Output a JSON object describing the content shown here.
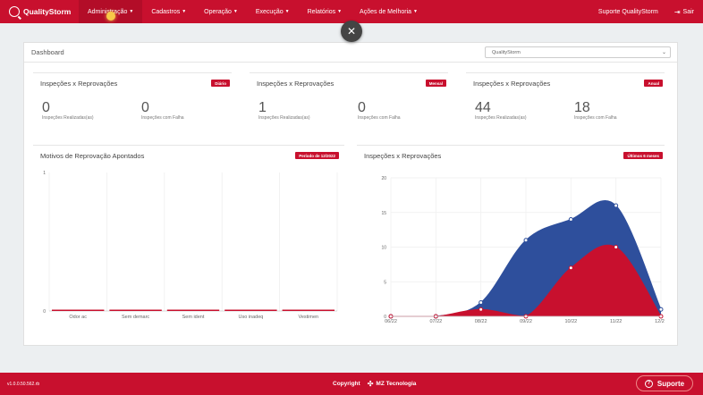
{
  "brand": {
    "name": "QualityStorm"
  },
  "nav": {
    "items": [
      {
        "label": "Administração"
      },
      {
        "label": "Cadastros"
      },
      {
        "label": "Operação"
      },
      {
        "label": "Execução"
      },
      {
        "label": "Relatórios"
      },
      {
        "label": "Ações de Melhoria"
      }
    ],
    "support_label": "Suporte QualityStorm",
    "exit_label": "Sair"
  },
  "dashboard": {
    "title": "Dashboard",
    "select_value": "QualityStorm",
    "cards": [
      {
        "title": "Inspeções x Reprovações",
        "badge": "Diário",
        "stats": [
          {
            "value": "0",
            "label": "Inspeções Realizadas(as)"
          },
          {
            "value": "0",
            "label": "Inspeções com Falha"
          }
        ]
      },
      {
        "title": "Inspeções x Reprovações",
        "badge": "Mensal",
        "stats": [
          {
            "value": "1",
            "label": "Inspeções Realizadas(as)"
          },
          {
            "value": "0",
            "label": "Inspeções com Falha"
          }
        ]
      },
      {
        "title": "Inspeções x Reprovações",
        "badge": "Anual",
        "stats": [
          {
            "value": "44",
            "label": "Inspeções Realizadas(as)"
          },
          {
            "value": "18",
            "label": "Inspeções com Falha"
          }
        ]
      }
    ],
    "bar_card": {
      "title": "Motivos de Reprovação Apontados",
      "badge": "Período de 12/2022"
    },
    "area_card": {
      "title": "Inspeções x Reprovações",
      "badge": "Últimos 6 meses"
    }
  },
  "chart_data": [
    {
      "type": "bar",
      "title": "Motivos de Reprovação Apontados",
      "categories": [
        "Odor ac",
        "Sem demarc",
        "Sem ident",
        "Uso inadeq",
        "Vestimen"
      ],
      "values": [
        0,
        0,
        0,
        0,
        0
      ],
      "ylim": [
        0,
        1
      ],
      "yticks": [
        0,
        1
      ],
      "color": "#c8102e"
    },
    {
      "type": "area",
      "title": "Inspeções x Reprovações",
      "categories": [
        "06/22",
        "07/22",
        "08/22",
        "09/22",
        "10/22",
        "11/22",
        "12/22"
      ],
      "series": [
        {
          "name": "Inspeções",
          "values": [
            0,
            0,
            2,
            11,
            14,
            16,
            1
          ],
          "color": "#2e4f9c"
        },
        {
          "name": "Reprovações",
          "values": [
            0,
            0,
            1,
            0,
            7,
            10,
            0
          ],
          "color": "#c8102e"
        }
      ],
      "ylim": [
        0,
        20
      ],
      "yticks": [
        0,
        5,
        10,
        15,
        20
      ]
    }
  ],
  "footer": {
    "version": "v1.0.0.50.562.rb",
    "copyright": "Copyright",
    "company": "MZ Tecnologia",
    "support_label": "Suporte"
  },
  "colors": {
    "brand": "#c8102e",
    "series_blue": "#2e4f9c"
  }
}
